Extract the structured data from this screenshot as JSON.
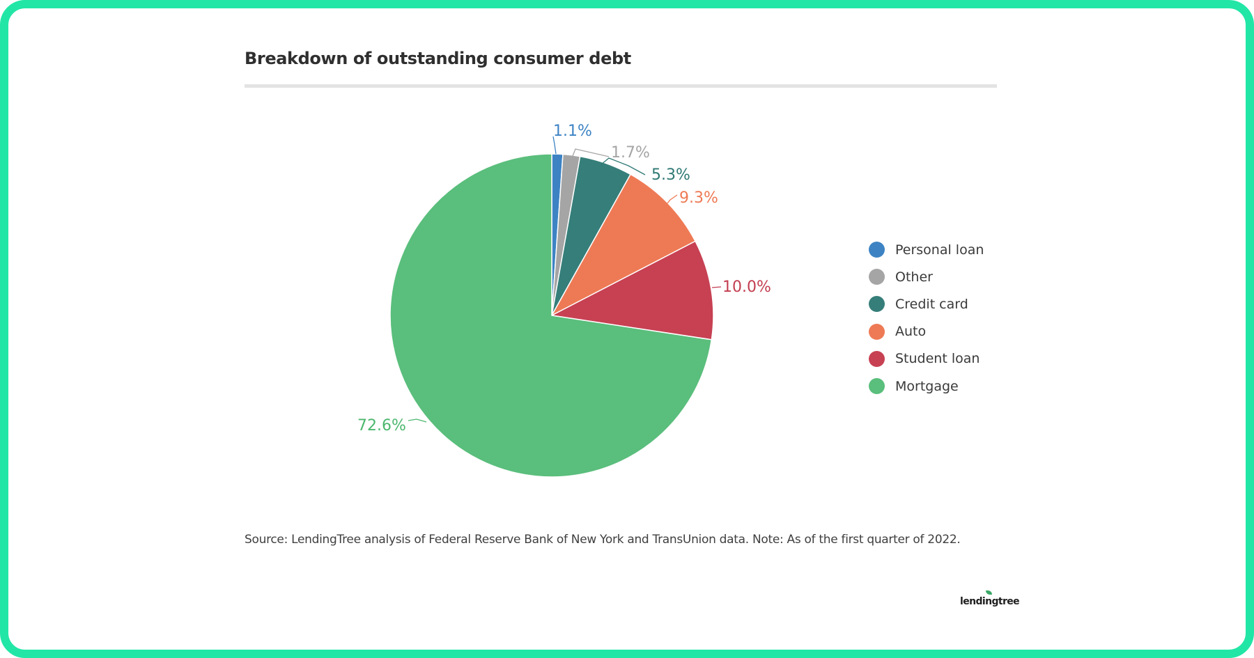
{
  "chart_data": {
    "type": "pie",
    "title": "Breakdown of outstanding consumer debt",
    "categories": [
      "Personal loan",
      "Other",
      "Credit card",
      "Auto",
      "Student loan",
      "Mortgage"
    ],
    "values": [
      1.1,
      1.7,
      5.3,
      9.3,
      10.0,
      72.6
    ],
    "labels": [
      "1.1%",
      "1.7%",
      "5.3%",
      "9.3%",
      "10.0%",
      "72.6%"
    ],
    "colors": [
      "#3d83c4",
      "#a5a5a5",
      "#367e7a",
      "#ee7a55",
      "#c74153",
      "#5abe7c"
    ],
    "label_colors": [
      "#3d83c4",
      "#a5a5a5",
      "#2f7974",
      "#ee7a55",
      "#c33e50",
      "#4bb76e"
    ],
    "unit": "%",
    "legend_position": "right",
    "start": "top, clockwise"
  },
  "source_note": "Source: LendingTree analysis of Federal Reserve Bank of New York and TransUnion data. Note: As of the first quarter of 2022.",
  "logo": {
    "text": "lendingtree"
  },
  "colors": {
    "frame_border": "#22e6a6",
    "title_rule": "#e3e3e3",
    "background": "#ffffff"
  }
}
